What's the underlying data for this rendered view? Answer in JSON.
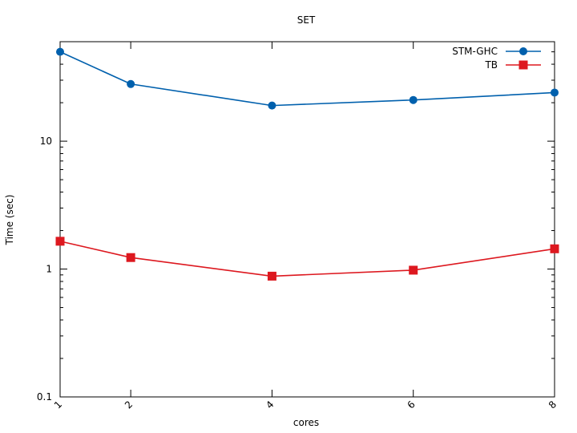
{
  "chart_data": {
    "type": "line",
    "title": "SET",
    "xlabel": "cores",
    "ylabel": "Time (sec)",
    "yscale": "log",
    "ylim": [
      0.1,
      60
    ],
    "xlim": [
      1,
      8
    ],
    "grid": false,
    "legend_position": "top-right",
    "x": [
      1,
      2,
      4,
      6,
      8
    ],
    "x_tick_labels": [
      "1",
      "2",
      "4",
      "6",
      "8"
    ],
    "y_ticks": [
      0.1,
      1,
      10
    ],
    "y_tick_labels": [
      "0.1",
      "1",
      "10"
    ],
    "series": [
      {
        "name": "STM-GHC",
        "color": "#0060ad",
        "marker": "circle",
        "values": [
          50,
          28,
          19,
          21,
          24
        ]
      },
      {
        "name": "TB",
        "color": "#dd181f",
        "marker": "square",
        "values": [
          1.65,
          1.23,
          0.88,
          0.98,
          1.44
        ]
      }
    ]
  }
}
